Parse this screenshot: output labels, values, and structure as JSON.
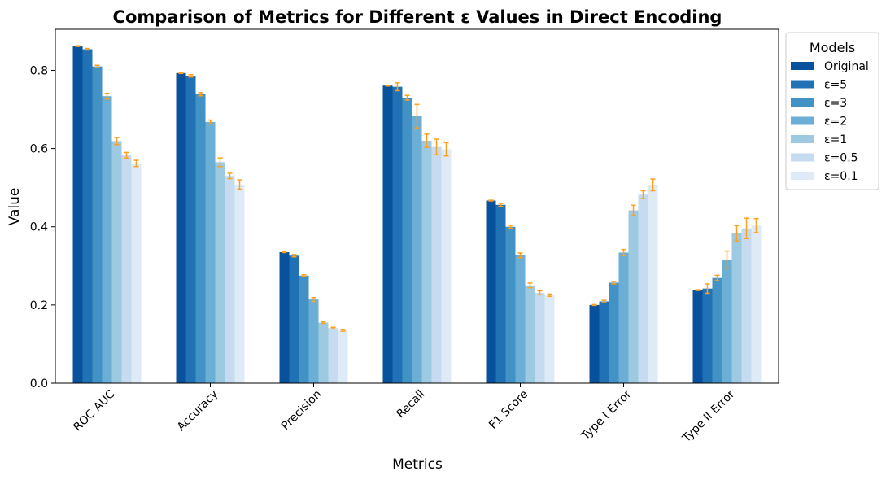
{
  "chart_data": {
    "type": "bar",
    "title": "Comparison of Metrics for Different ε Values in Direct Encoding",
    "xlabel": "Metrics",
    "ylabel": "Value",
    "ylim": [
      0,
      0.905
    ],
    "yticks": [
      0.0,
      0.2,
      0.4,
      0.6,
      0.8
    ],
    "ytick_labels": [
      "0.0",
      "0.2",
      "0.4",
      "0.6",
      "0.8"
    ],
    "categories": [
      "ROC AUC",
      "Accuracy",
      "Precision",
      "Recall",
      "F1 Score",
      "Type I Error",
      "Type II Error"
    ],
    "legend_title": "Models",
    "legend_position": "outside-right",
    "grid": false,
    "error_bar_color": "#ff9f1c",
    "series": [
      {
        "name": "Original",
        "color": "#08519c",
        "values": [
          0.862,
          0.793,
          0.335,
          0.761,
          0.467,
          0.2,
          0.238
        ],
        "errors": [
          0.001,
          0.001,
          0.001,
          0.001,
          0.001,
          0.001,
          0.001
        ]
      },
      {
        "name": "ε=5",
        "color": "#2171b5",
        "values": [
          0.854,
          0.786,
          0.326,
          0.758,
          0.456,
          0.209,
          0.242
        ],
        "errors": [
          0.002,
          0.003,
          0.003,
          0.01,
          0.004,
          0.003,
          0.012
        ]
      },
      {
        "name": "ε=3",
        "color": "#4292c6",
        "values": [
          0.81,
          0.739,
          0.275,
          0.73,
          0.4,
          0.257,
          0.269
        ],
        "errors": [
          0.003,
          0.004,
          0.002,
          0.006,
          0.004,
          0.003,
          0.007
        ]
      },
      {
        "name": "ε=2",
        "color": "#6baed6",
        "values": [
          0.734,
          0.668,
          0.214,
          0.683,
          0.327,
          0.334,
          0.316
        ],
        "errors": [
          0.007,
          0.005,
          0.005,
          0.03,
          0.006,
          0.008,
          0.022
        ]
      },
      {
        "name": "ε=1",
        "color": "#9ecae1",
        "values": [
          0.619,
          0.565,
          0.155,
          0.62,
          0.25,
          0.442,
          0.383
        ],
        "errors": [
          0.009,
          0.011,
          0.002,
          0.017,
          0.006,
          0.013,
          0.02
        ]
      },
      {
        "name": "ε=0.5",
        "color": "#c6dbef",
        "values": [
          0.583,
          0.53,
          0.141,
          0.604,
          0.231,
          0.482,
          0.396
        ],
        "errors": [
          0.007,
          0.007,
          0.002,
          0.02,
          0.005,
          0.01,
          0.026
        ]
      },
      {
        "name": "ε=0.1",
        "color": "#deebf7",
        "values": [
          0.562,
          0.508,
          0.135,
          0.598,
          0.225,
          0.507,
          0.403
        ],
        "errors": [
          0.008,
          0.012,
          0.002,
          0.017,
          0.003,
          0.015,
          0.018
        ]
      }
    ]
  }
}
